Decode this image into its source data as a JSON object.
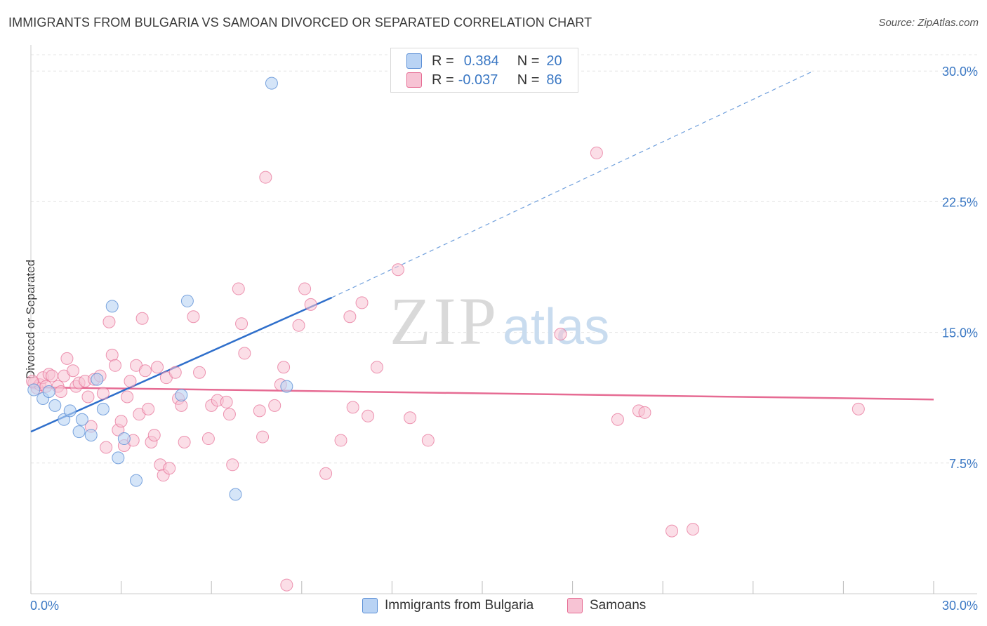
{
  "title": "IMMIGRANTS FROM BULGARIA VS SAMOAN DIVORCED OR SEPARATED CORRELATION CHART",
  "source": "Source: ZipAtlas.com",
  "watermark": {
    "zip": "ZIP",
    "atlas": "atlas"
  },
  "legend": {
    "r_label": "R =",
    "n_label": "N =",
    "series1": {
      "r": "0.384",
      "n": "20"
    },
    "series2": {
      "r": "-0.037",
      "n": "86"
    }
  },
  "bottom_legend": {
    "series1": "Immigrants from Bulgaria",
    "series2": "Samoans"
  },
  "colors": {
    "bulgaria": "#5b8fd6",
    "bulgaria_fill": "#b9d3f4",
    "samoa": "#e66b93",
    "samoa_fill": "#f7c3d4",
    "tick_text": "#3b78c4"
  },
  "chart_data": {
    "type": "scatter",
    "title": "IMMIGRANTS FROM BULGARIA VS SAMOAN DIVORCED OR SEPARATED CORRELATION CHART",
    "xlabel": "",
    "ylabel": "Divorced or Separated",
    "xlim": [
      0,
      30
    ],
    "ylim": [
      0,
      31.5
    ],
    "x_tick_labels": [
      "0.0%",
      "30.0%"
    ],
    "y_ticks": [
      7.5,
      15.0,
      22.5,
      30.0
    ],
    "y_tick_labels": [
      "7.5%",
      "15.0%",
      "22.5%",
      "30.0%"
    ],
    "grid": true,
    "legend_position": "top-center",
    "series": [
      {
        "name": "Immigrants from Bulgaria",
        "points": [
          [
            0.1,
            11.7
          ],
          [
            0.4,
            11.2
          ],
          [
            0.6,
            11.6
          ],
          [
            0.8,
            10.8
          ],
          [
            1.1,
            10.0
          ],
          [
            1.3,
            10.5
          ],
          [
            1.6,
            9.3
          ],
          [
            1.7,
            10.0
          ],
          [
            2.0,
            9.1
          ],
          [
            2.2,
            12.3
          ],
          [
            2.4,
            10.6
          ],
          [
            2.7,
            16.5
          ],
          [
            2.9,
            7.8
          ],
          [
            3.1,
            8.9
          ],
          [
            3.5,
            6.5
          ],
          [
            5.0,
            11.4
          ],
          [
            5.2,
            16.8
          ],
          [
            6.8,
            5.7
          ],
          [
            8.0,
            29.3
          ],
          [
            8.5,
            11.9
          ]
        ],
        "trend": {
          "x": [
            0,
            10.0,
            26.0
          ],
          "y": [
            9.3,
            17.0,
            30.0
          ],
          "solid_until_x": 10.0
        }
      },
      {
        "name": "Samoans",
        "points": [
          [
            0.1,
            12.1
          ],
          [
            0.2,
            11.8
          ],
          [
            0.3,
            12.0
          ],
          [
            0.4,
            12.4
          ],
          [
            0.5,
            11.9
          ],
          [
            0.6,
            12.6
          ],
          [
            0.7,
            12.5
          ],
          [
            0.9,
            11.9
          ],
          [
            1.0,
            11.6
          ],
          [
            1.1,
            12.5
          ],
          [
            1.2,
            13.5
          ],
          [
            1.4,
            12.8
          ],
          [
            1.5,
            11.9
          ],
          [
            1.6,
            12.1
          ],
          [
            1.8,
            12.2
          ],
          [
            1.9,
            11.3
          ],
          [
            2.0,
            9.6
          ],
          [
            2.1,
            12.3
          ],
          [
            2.3,
            12.5
          ],
          [
            2.4,
            11.5
          ],
          [
            2.5,
            8.4
          ],
          [
            2.6,
            15.6
          ],
          [
            2.7,
            13.7
          ],
          [
            2.8,
            13.1
          ],
          [
            2.9,
            9.4
          ],
          [
            3.0,
            9.9
          ],
          [
            3.1,
            8.5
          ],
          [
            3.2,
            11.3
          ],
          [
            3.3,
            12.2
          ],
          [
            3.4,
            8.8
          ],
          [
            3.5,
            13.1
          ],
          [
            3.6,
            10.3
          ],
          [
            3.7,
            15.8
          ],
          [
            3.8,
            12.8
          ],
          [
            3.9,
            10.6
          ],
          [
            4.0,
            8.7
          ],
          [
            4.1,
            9.1
          ],
          [
            4.2,
            13.0
          ],
          [
            4.3,
            7.4
          ],
          [
            4.4,
            6.8
          ],
          [
            4.5,
            12.4
          ],
          [
            4.6,
            7.2
          ],
          [
            4.8,
            12.7
          ],
          [
            4.9,
            11.2
          ],
          [
            5.0,
            10.8
          ],
          [
            5.1,
            8.7
          ],
          [
            5.4,
            15.9
          ],
          [
            5.6,
            12.7
          ],
          [
            5.9,
            8.9
          ],
          [
            6.0,
            10.8
          ],
          [
            6.2,
            11.1
          ],
          [
            6.5,
            11.0
          ],
          [
            6.6,
            10.3
          ],
          [
            6.7,
            7.4
          ],
          [
            6.9,
            17.5
          ],
          [
            7.0,
            15.5
          ],
          [
            7.1,
            13.8
          ],
          [
            7.6,
            10.5
          ],
          [
            7.7,
            9.0
          ],
          [
            7.8,
            23.9
          ],
          [
            8.1,
            10.8
          ],
          [
            8.3,
            12.0
          ],
          [
            8.4,
            13.0
          ],
          [
            8.5,
            0.5
          ],
          [
            8.9,
            15.4
          ],
          [
            9.1,
            17.5
          ],
          [
            9.3,
            16.6
          ],
          [
            9.8,
            6.9
          ],
          [
            10.3,
            8.8
          ],
          [
            10.6,
            15.9
          ],
          [
            10.7,
            10.7
          ],
          [
            11.0,
            16.7
          ],
          [
            11.2,
            10.2
          ],
          [
            11.5,
            13.0
          ],
          [
            12.2,
            18.6
          ],
          [
            12.6,
            10.1
          ],
          [
            13.2,
            8.8
          ],
          [
            17.6,
            14.9
          ],
          [
            18.8,
            25.3
          ],
          [
            19.5,
            10.0
          ],
          [
            20.2,
            10.5
          ],
          [
            20.4,
            10.4
          ],
          [
            21.3,
            3.6
          ],
          [
            22.0,
            3.7
          ],
          [
            27.5,
            10.6
          ],
          [
            0.05,
            12.2
          ]
        ],
        "trend": {
          "x": [
            0,
            30
          ],
          "y": [
            11.85,
            11.15
          ]
        }
      }
    ]
  }
}
